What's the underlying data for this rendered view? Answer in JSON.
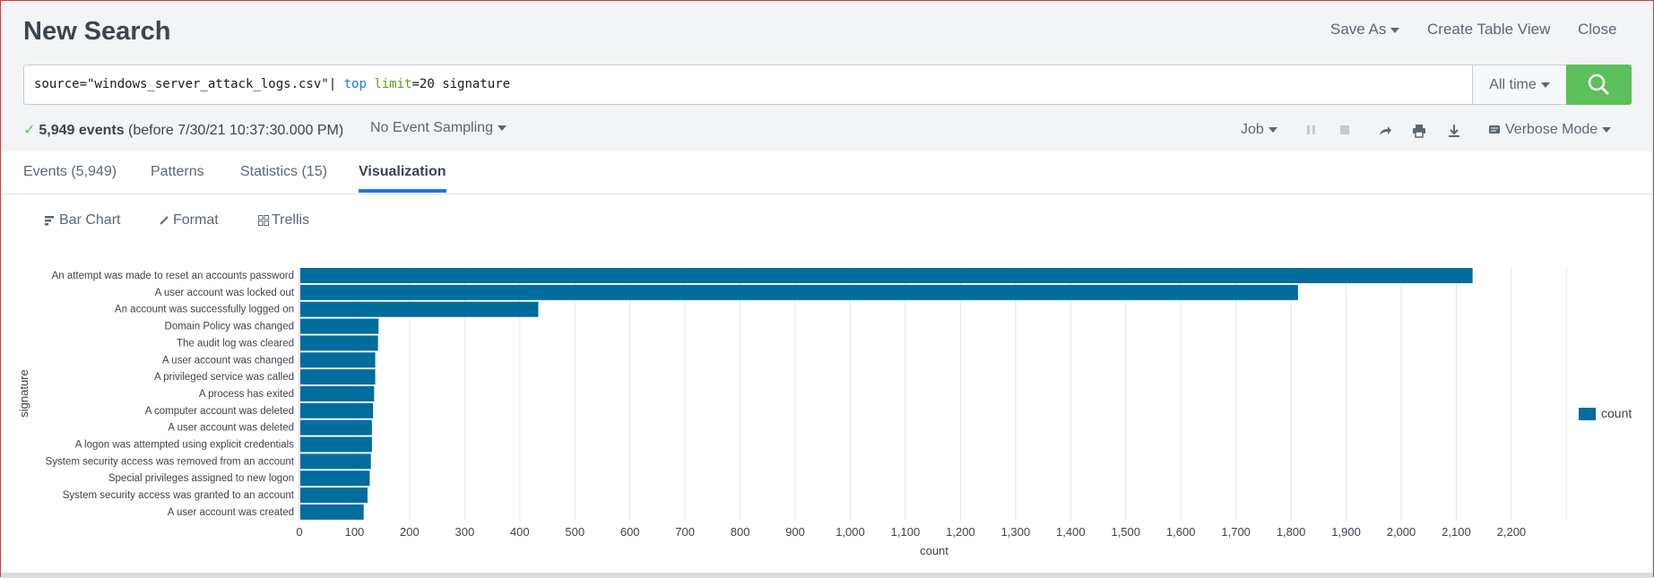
{
  "header": {
    "title": "New Search",
    "save_as": "Save As",
    "create_table_view": "Create Table View",
    "close": "Close"
  },
  "search": {
    "query_source": "source=\"windows_server_attack_logs.csv\"",
    "query_pipe": "| ",
    "query_cmd": "top",
    "query_arg": "limit",
    "query_rest": "=20 signature",
    "time_range": "All time"
  },
  "status": {
    "event_count": "5,949 events",
    "event_time": "(before 7/30/21 10:37:30.000 PM)",
    "sampling": "No Event Sampling",
    "job": "Job",
    "mode": "Verbose Mode"
  },
  "tabs": [
    {
      "label": "Events (5,949)"
    },
    {
      "label": "Patterns"
    },
    {
      "label": "Statistics (15)"
    },
    {
      "label": "Visualization"
    }
  ],
  "viz_toolbar": {
    "bar_chart": "Bar Chart",
    "format": "Format",
    "trellis": "Trellis"
  },
  "colors": {
    "bar": "#006d9c",
    "accent": "#1a7bdb",
    "search_button": "#5cc05c"
  },
  "chart_data": {
    "type": "bar",
    "orientation": "horizontal",
    "categories": [
      "An attempt was made to reset an accounts password",
      "A user account was locked out",
      "An account was successfully logged on",
      "Domain Policy was changed",
      "The audit log was cleared",
      "A user account was changed",
      "A privileged service was called",
      "A process has exited",
      "A computer account was deleted",
      "A user account was deleted",
      "A logon was attempted using explicit credentials",
      "System security access was removed from an account",
      "Special privileges assigned to new logon",
      "System security access was granted to an account",
      "A user account was created"
    ],
    "series": [
      {
        "name": "count",
        "values": [
          2128,
          1811,
          432,
          142,
          141,
          136,
          136,
          134,
          132,
          130,
          130,
          128,
          126,
          122,
          115
        ]
      }
    ],
    "xlabel": "count",
    "ylabel": "signature",
    "xlim": [
      0,
      2300
    ],
    "xticks": [
      0,
      100,
      200,
      300,
      400,
      500,
      600,
      700,
      800,
      900,
      1000,
      1100,
      1200,
      1300,
      1400,
      1500,
      1600,
      1700,
      1800,
      1900,
      2000,
      2100,
      2200
    ],
    "xtick_labels": [
      "0",
      "100",
      "200",
      "300",
      "400",
      "500",
      "600",
      "700",
      "800",
      "900",
      "1,000",
      "1,100",
      "1,200",
      "1,300",
      "1,400",
      "1,500",
      "1,600",
      "1,700",
      "1,800",
      "1,900",
      "2,000",
      "2,100",
      "2,200"
    ],
    "grid": true,
    "legend_position": "right"
  }
}
